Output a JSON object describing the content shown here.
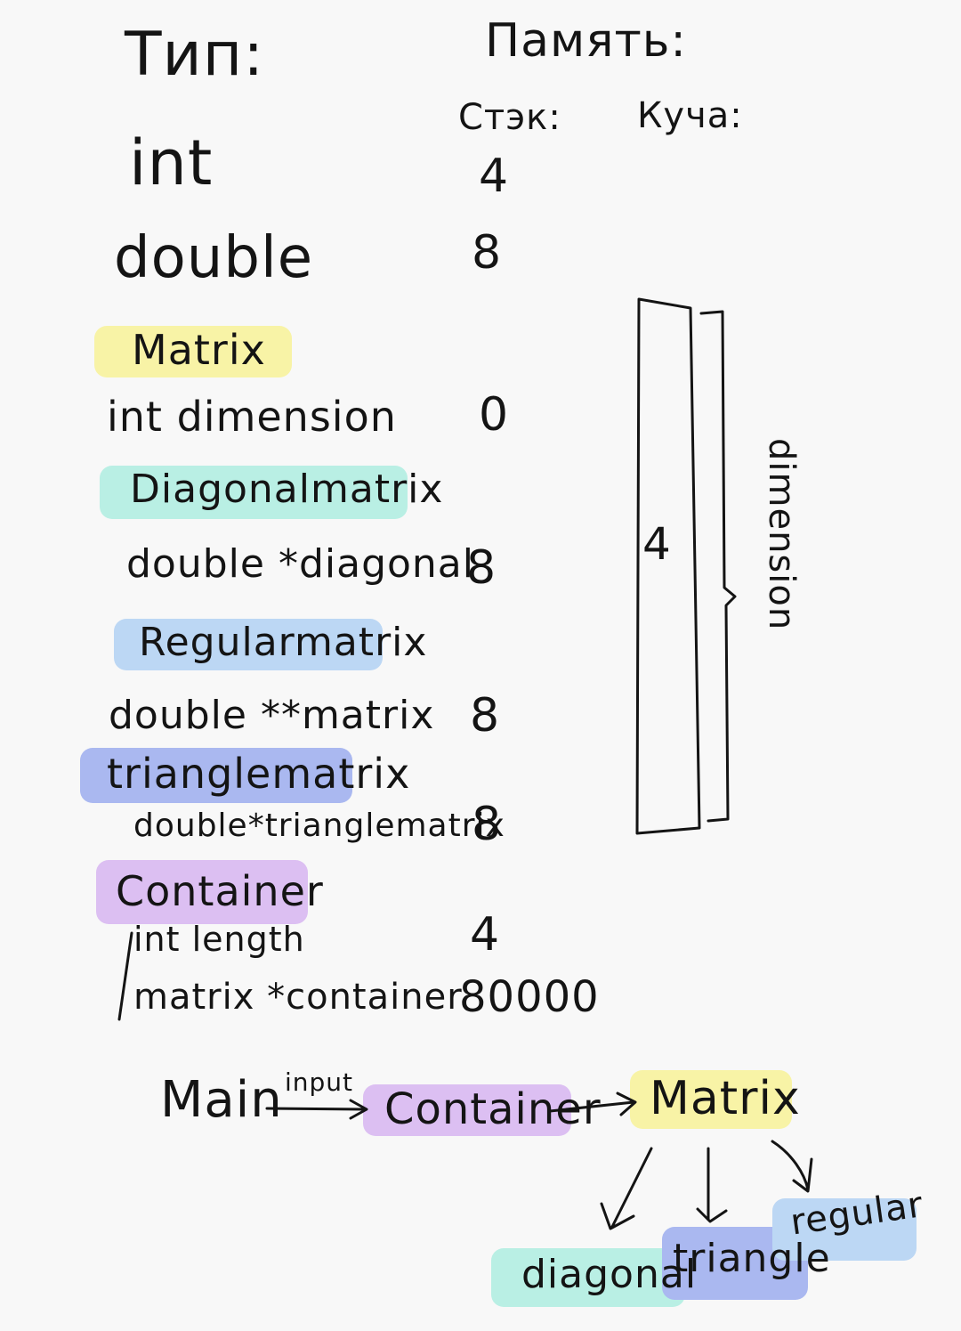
{
  "headings": {
    "type": "Тип:",
    "memory": "Память:",
    "stack": "Стэк:",
    "heap": "Куча:"
  },
  "rows": [
    {
      "label": "int",
      "value": "4"
    },
    {
      "label": "double",
      "value": "8"
    },
    {
      "label": "Matrix",
      "value": ""
    },
    {
      "label": "int dimension",
      "value": "0"
    },
    {
      "label": "Diagonalmatrix",
      "value": ""
    },
    {
      "label": "double *diagonal",
      "value": "8"
    },
    {
      "label": "Regularmatrix",
      "value": ""
    },
    {
      "label": "double **matrix",
      "value": "8"
    },
    {
      "label": "trianglematrix",
      "value": ""
    },
    {
      "label": "double*trianglematrix",
      "value": "8"
    },
    {
      "label": "Container",
      "value": ""
    },
    {
      "label": "int length",
      "value": "4"
    },
    {
      "label": "matrix *container",
      "value": "80000"
    }
  ],
  "heap_block": {
    "value": "4",
    "brace_label": "dimension"
  },
  "flow": {
    "main": "Main",
    "edge_label": "input",
    "container": "Container",
    "matrix": "Matrix",
    "children": [
      "diagonal",
      "triangle",
      "regular"
    ]
  },
  "colors": {
    "matrix": "#f8f3a6",
    "diagonal": "#b9efe4",
    "regular": "#bcd7f4",
    "triangle": "#aab8f0",
    "container": "#dcbff2",
    "ink": "#141414"
  }
}
